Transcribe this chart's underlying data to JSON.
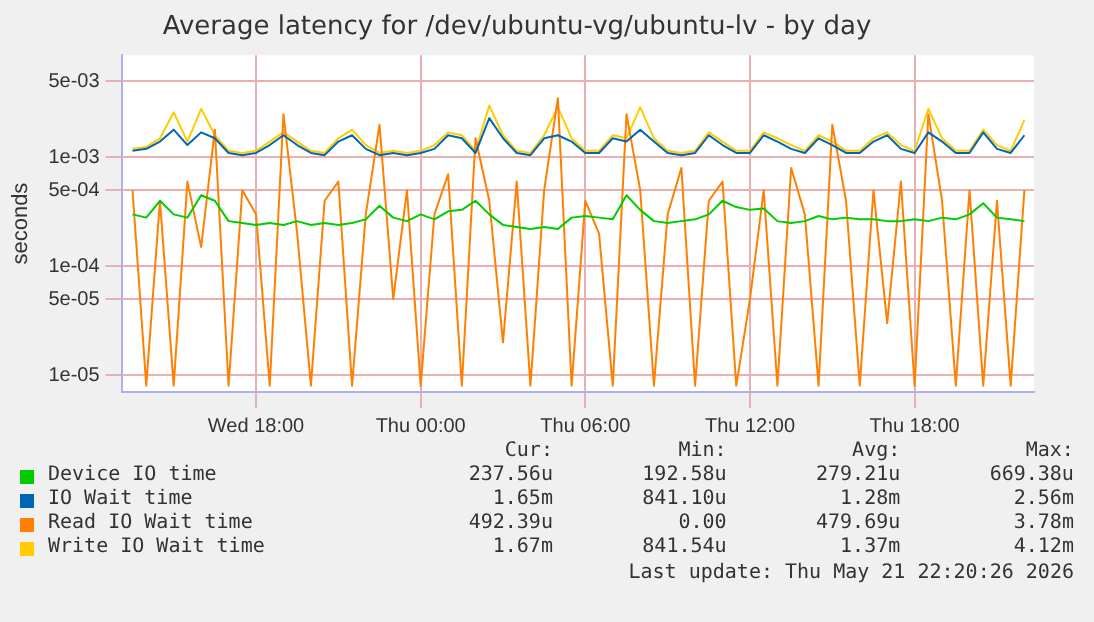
{
  "chart_data": {
    "type": "line",
    "title": "Average latency for /dev/ubuntu-vg/ubuntu-lv - by day",
    "ylabel": "seconds",
    "log": "y",
    "grid": true,
    "legend": "bottom",
    "marker": "none",
    "line_style": "solid",
    "x": [
      "2026-05-20T13:30",
      "2026-05-20T14:00",
      "2026-05-20T14:30",
      "2026-05-20T15:00",
      "2026-05-20T15:30",
      "2026-05-20T16:00",
      "2026-05-20T16:30",
      "2026-05-20T17:00",
      "2026-05-20T17:30",
      "2026-05-20T18:00",
      "2026-05-20T18:30",
      "2026-05-20T19:00",
      "2026-05-20T19:30",
      "2026-05-20T20:00",
      "2026-05-20T20:30",
      "2026-05-20T21:00",
      "2026-05-20T21:30",
      "2026-05-20T22:00",
      "2026-05-20T22:30",
      "2026-05-20T23:00",
      "2026-05-20T23:30",
      "2026-05-21T00:00",
      "2026-05-21T00:30",
      "2026-05-21T01:00",
      "2026-05-21T01:30",
      "2026-05-21T02:00",
      "2026-05-21T02:30",
      "2026-05-21T03:00",
      "2026-05-21T03:30",
      "2026-05-21T04:00",
      "2026-05-21T04:30",
      "2026-05-21T05:00",
      "2026-05-21T05:30",
      "2026-05-21T06:00",
      "2026-05-21T06:30",
      "2026-05-21T07:00",
      "2026-05-21T07:30",
      "2026-05-21T08:00",
      "2026-05-21T08:30",
      "2026-05-21T09:00",
      "2026-05-21T09:30",
      "2026-05-21T10:00",
      "2026-05-21T10:30",
      "2026-05-21T11:00",
      "2026-05-21T11:30",
      "2026-05-21T12:00",
      "2026-05-21T12:30",
      "2026-05-21T13:00",
      "2026-05-21T13:30",
      "2026-05-21T14:00",
      "2026-05-21T14:30",
      "2026-05-21T15:00",
      "2026-05-21T15:30",
      "2026-05-21T16:00",
      "2026-05-21T16:30",
      "2026-05-21T17:00",
      "2026-05-21T17:30",
      "2026-05-21T18:00",
      "2026-05-21T18:30",
      "2026-05-21T19:00",
      "2026-05-21T19:30",
      "2026-05-21T20:00",
      "2026-05-21T20:30",
      "2026-05-21T21:00",
      "2026-05-21T21:30",
      "2026-05-21T22:00"
    ],
    "xlim": [
      "2026-05-20T13:06",
      "2026-05-21T22:21"
    ],
    "xticks": [
      {
        "value": "2026-05-20T18:00",
        "label": "Wed 18:00"
      },
      {
        "value": "2026-05-21T00:00",
        "label": "Thu 00:00"
      },
      {
        "value": "2026-05-21T06:00",
        "label": "Thu 06:00"
      },
      {
        "value": "2026-05-21T12:00",
        "label": "Thu 12:00"
      },
      {
        "value": "2026-05-21T18:00",
        "label": "Thu 18:00"
      }
    ],
    "ylim": [
      7e-06,
      0.0087
    ],
    "yticks": [
      {
        "value": 1e-05,
        "label": "1e-05"
      },
      {
        "value": 5e-05,
        "label": "5e-05"
      },
      {
        "value": 0.0001,
        "label": "1e-04"
      },
      {
        "value": 0.0005,
        "label": "5e-04"
      },
      {
        "value": 0.001,
        "label": "1e-03"
      },
      {
        "value": 0.005,
        "label": "5e-03"
      }
    ],
    "series": [
      {
        "name": "Device IO time",
        "color": "#00cc00",
        "values": [
          0.0003,
          0.00028,
          0.0004,
          0.0003,
          0.00028,
          0.00045,
          0.0004,
          0.00026,
          0.00025,
          0.00024,
          0.00025,
          0.00024,
          0.00026,
          0.00024,
          0.00025,
          0.00024,
          0.00025,
          0.00027,
          0.00036,
          0.00028,
          0.00026,
          0.0003,
          0.00027,
          0.00032,
          0.00033,
          0.0004,
          0.0003,
          0.00024,
          0.00023,
          0.00022,
          0.00023,
          0.00022,
          0.00028,
          0.00029,
          0.00028,
          0.00027,
          0.00045,
          0.00033,
          0.00026,
          0.00025,
          0.00026,
          0.00027,
          0.0003,
          0.0004,
          0.00035,
          0.00033,
          0.00034,
          0.00026,
          0.00025,
          0.00026,
          0.00029,
          0.00027,
          0.00028,
          0.00027,
          0.00027,
          0.00026,
          0.00026,
          0.00027,
          0.00026,
          0.00028,
          0.00027,
          0.0003,
          0.00038,
          0.00028,
          0.00027,
          0.00026
        ]
      },
      {
        "name": "IO Wait time",
        "color": "#0066b3",
        "values": [
          0.00115,
          0.0012,
          0.0014,
          0.0018,
          0.0013,
          0.0017,
          0.0015,
          0.0011,
          0.00105,
          0.0011,
          0.0013,
          0.0016,
          0.0013,
          0.0011,
          0.00105,
          0.0014,
          0.0016,
          0.0012,
          0.00105,
          0.0011,
          0.00105,
          0.0011,
          0.0012,
          0.0016,
          0.0015,
          0.0011,
          0.0023,
          0.0015,
          0.0011,
          0.00105,
          0.0015,
          0.0016,
          0.0014,
          0.0011,
          0.0011,
          0.0015,
          0.0014,
          0.0018,
          0.0014,
          0.0011,
          0.00105,
          0.0011,
          0.0016,
          0.0013,
          0.0011,
          0.0011,
          0.0016,
          0.0014,
          0.0012,
          0.0011,
          0.0015,
          0.0013,
          0.0011,
          0.0011,
          0.0014,
          0.0016,
          0.0012,
          0.0011,
          0.0017,
          0.0014,
          0.0011,
          0.0011,
          0.0017,
          0.0012,
          0.0011,
          0.0016
        ]
      },
      {
        "name": "Read IO Wait time",
        "color": "#ff8000",
        "values": [
          0.0005,
          8e-06,
          0.0004,
          8e-06,
          0.0006,
          0.00015,
          0.0018,
          8e-06,
          0.0005,
          0.0003,
          8e-06,
          0.0025,
          0.0002,
          8e-06,
          0.0004,
          0.0006,
          8e-06,
          0.0003,
          0.002,
          5e-05,
          0.0005,
          8e-06,
          0.0003,
          0.0007,
          8e-06,
          0.0015,
          0.0004,
          2e-05,
          0.0006,
          8e-06,
          0.0005,
          0.0035,
          8e-06,
          0.0004,
          0.0002,
          8e-06,
          0.0025,
          0.0005,
          8e-06,
          0.0003,
          0.0008,
          8e-06,
          0.0004,
          0.0006,
          8e-06,
          5e-05,
          0.0005,
          8e-06,
          0.0008,
          0.0003,
          8e-06,
          0.002,
          0.0004,
          8e-06,
          0.0005,
          3e-05,
          0.0006,
          8e-06,
          0.0025,
          0.0004,
          8e-06,
          0.0005,
          8e-06,
          0.0004,
          8e-06,
          0.0005
        ]
      },
      {
        "name": "Write IO Wait time",
        "color": "#ffcc00",
        "values": [
          0.0012,
          0.00125,
          0.0015,
          0.0026,
          0.0014,
          0.0028,
          0.0016,
          0.00115,
          0.0011,
          0.00115,
          0.0014,
          0.0017,
          0.0014,
          0.00115,
          0.0011,
          0.0015,
          0.0018,
          0.0013,
          0.0011,
          0.00115,
          0.0011,
          0.00115,
          0.0013,
          0.0017,
          0.0016,
          0.00115,
          0.003,
          0.0016,
          0.00115,
          0.0011,
          0.0016,
          0.0029,
          0.0015,
          0.00115,
          0.00115,
          0.0016,
          0.0015,
          0.0029,
          0.0015,
          0.00115,
          0.0011,
          0.00115,
          0.0017,
          0.0014,
          0.00115,
          0.00115,
          0.0017,
          0.0015,
          0.0013,
          0.00115,
          0.0016,
          0.0014,
          0.00115,
          0.00115,
          0.0015,
          0.0017,
          0.0013,
          0.00115,
          0.0028,
          0.0015,
          0.00115,
          0.00115,
          0.0018,
          0.0013,
          0.00115,
          0.0022
        ]
      }
    ],
    "annotations": [
      "Cur:",
      "Min:",
      "Avg:",
      "Max:",
      "237.56u",
      "192.58u",
      "279.21u",
      "669.38u",
      "1.65m",
      "841.10u",
      "1.28m",
      "2.56m",
      "492.39u",
      "0.00",
      "479.69u",
      "3.78m",
      "1.67m",
      "841.54u",
      "1.37m",
      "4.12m",
      "Last update: Thu May 21 22:20:26 2026"
    ]
  }
}
